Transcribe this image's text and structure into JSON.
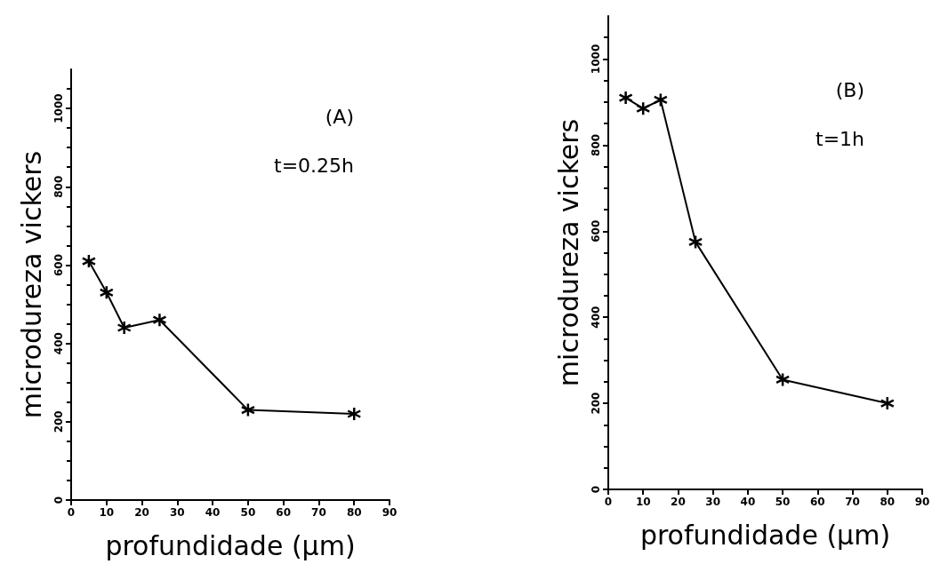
{
  "chart_data": [
    {
      "type": "line",
      "xlabel": "profundidade (μm)",
      "ylabel": "microdureza vickers",
      "annotations": [
        "(A)",
        "t=0.25h"
      ],
      "x": [
        5,
        10,
        15,
        25,
        50,
        80
      ],
      "series": [
        {
          "color": "#000000",
          "values": [
            610,
            530,
            440,
            460,
            230,
            220
          ]
        }
      ],
      "xlim": [
        0,
        90
      ],
      "xticks": [
        0,
        10,
        20,
        30,
        40,
        50,
        60,
        70,
        80,
        90
      ],
      "ylim": [
        0,
        1100
      ],
      "yticks": [
        0,
        200,
        400,
        600,
        800,
        1000
      ],
      "grid": false,
      "marker": "cross",
      "line_style": "solid"
    },
    {
      "type": "line",
      "xlabel": "profundidade (μm)",
      "ylabel": "microdureza vickers",
      "annotations": [
        "(B)",
        "t=1h"
      ],
      "x": [
        5,
        10,
        15,
        25,
        50,
        80
      ],
      "series": [
        {
          "color": "#000000",
          "values": [
            910,
            885,
            905,
            575,
            255,
            200
          ]
        }
      ],
      "xlim": [
        0,
        90
      ],
      "xticks": [
        0,
        10,
        20,
        30,
        40,
        50,
        60,
        70,
        80,
        90
      ],
      "ylim": [
        0,
        1100
      ],
      "yticks": [
        0,
        200,
        400,
        600,
        800,
        1000
      ],
      "grid": false,
      "marker": "cross",
      "line_style": "solid"
    }
  ]
}
